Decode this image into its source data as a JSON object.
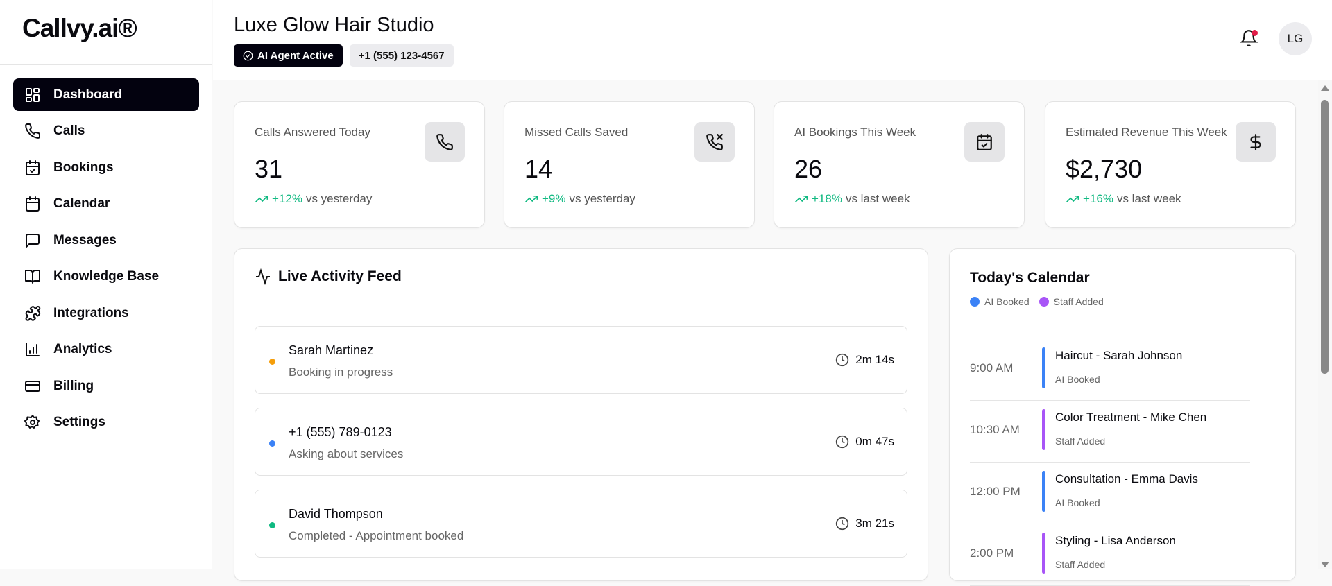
{
  "brand": {
    "logo": "Callvy.ai®"
  },
  "sidebar": {
    "items": [
      {
        "label": "Dashboard",
        "icon": "dashboard-icon",
        "active": true
      },
      {
        "label": "Calls",
        "icon": "phone-icon"
      },
      {
        "label": "Bookings",
        "icon": "calendar-check-icon"
      },
      {
        "label": "Calendar",
        "icon": "calendar-icon"
      },
      {
        "label": "Messages",
        "icon": "message-icon"
      },
      {
        "label": "Knowledge Base",
        "icon": "book-icon"
      },
      {
        "label": "Integrations",
        "icon": "puzzle-icon"
      },
      {
        "label": "Analytics",
        "icon": "bar-chart-icon"
      },
      {
        "label": "Billing",
        "icon": "credit-card-icon"
      },
      {
        "label": "Settings",
        "icon": "gear-icon"
      }
    ]
  },
  "header": {
    "title": "Luxe Glow Hair Studio",
    "status_badge": "AI Agent Active",
    "phone": "+1 (555) 123-4567",
    "avatar": "LG",
    "notification_dot_color": "#e11d48"
  },
  "stats": [
    {
      "label": "Calls Answered Today",
      "value": "31",
      "change": "+12%",
      "compare": "vs yesterday",
      "icon": "phone-icon"
    },
    {
      "label": "Missed Calls Saved",
      "value": "14",
      "change": "+9%",
      "compare": "vs yesterday",
      "icon": "phone-missed-icon"
    },
    {
      "label": "AI Bookings This Week",
      "value": "26",
      "change": "+18%",
      "compare": "vs last week",
      "icon": "calendar-check-icon"
    },
    {
      "label": "Estimated Revenue This Week",
      "value": "$2,730",
      "change": "+16%",
      "compare": "vs last week",
      "icon": "dollar-icon"
    }
  ],
  "feed": {
    "title": "Live Activity Feed",
    "items": [
      {
        "name": "Sarah Martinez",
        "status": "Booking in progress",
        "duration": "2m 14s",
        "color": "#f59e0b"
      },
      {
        "name": "+1 (555) 789-0123",
        "status": "Asking about services",
        "duration": "0m 47s",
        "color": "#3b82f6"
      },
      {
        "name": "David Thompson",
        "status": "Completed - Appointment booked",
        "duration": "3m 21s",
        "color": "#10b981"
      }
    ]
  },
  "calendar": {
    "title": "Today's Calendar",
    "legend": [
      {
        "label": "AI Booked",
        "color": "#3b82f6"
      },
      {
        "label": "Staff Added",
        "color": "#a855f7"
      }
    ],
    "events": [
      {
        "time": "9:00 AM",
        "title": "Haircut - Sarah Johnson",
        "source": "AI Booked",
        "color": "#3b82f6"
      },
      {
        "time": "10:30 AM",
        "title": "Color Treatment - Mike Chen",
        "source": "Staff Added",
        "color": "#a855f7"
      },
      {
        "time": "12:00 PM",
        "title": "Consultation - Emma Davis",
        "source": "AI Booked",
        "color": "#3b82f6"
      },
      {
        "time": "2:00 PM",
        "title": "Styling - Lisa Anderson",
        "source": "Staff Added",
        "color": "#a855f7"
      }
    ]
  }
}
